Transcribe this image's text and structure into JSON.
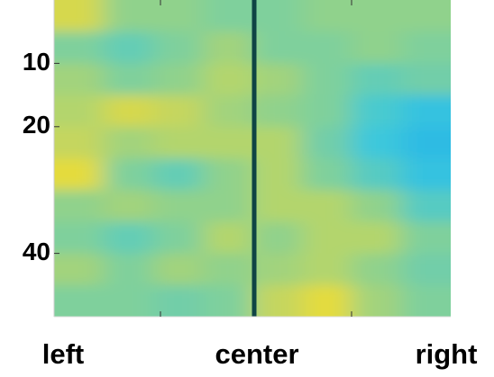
{
  "chart_data": {
    "type": "heatmap",
    "categories": [
      "left",
      "center",
      "right"
    ],
    "ylim": [
      0,
      50
    ],
    "yticks": [
      10,
      20,
      40
    ],
    "clim": [
      -1,
      1
    ],
    "colors": [
      "#16a8ee",
      "#3cc8dc",
      "#7fd09c",
      "#d6d84e",
      "#f8e026"
    ],
    "values": [
      [
        0.5,
        0.1,
        0.1,
        0,
        0,
        0.1,
        0.1,
        0.1
      ],
      [
        0,
        -0.2,
        0,
        0.2,
        0,
        0,
        0.1,
        0
      ],
      [
        0.2,
        0,
        0.1,
        0.3,
        0.2,
        0,
        -0.2,
        -0.1
      ],
      [
        0.3,
        0.5,
        0.4,
        0.2,
        0.1,
        0,
        -0.4,
        -0.6
      ],
      [
        0.4,
        0.2,
        0.3,
        0.3,
        0.3,
        -0.1,
        -0.5,
        -0.7
      ],
      [
        0.7,
        0,
        -0.2,
        0.1,
        0.3,
        0,
        -0.3,
        -0.6
      ],
      [
        0.1,
        0.2,
        0.1,
        0.1,
        0.3,
        0.3,
        0.1,
        -0.3
      ],
      [
        0,
        -0.2,
        0,
        0.3,
        0.1,
        0.3,
        0.3,
        0
      ],
      [
        0.2,
        0,
        0.2,
        0.1,
        0.2,
        0.3,
        0.1,
        -0.1
      ],
      [
        0,
        0,
        -0.1,
        0,
        0.4,
        0.7,
        0.2,
        0
      ]
    ]
  }
}
